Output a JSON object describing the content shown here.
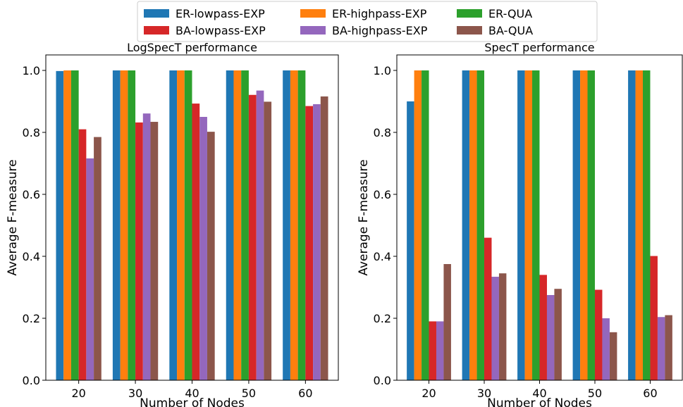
{
  "legend": {
    "entries": [
      {
        "label": "ER-lowpass-EXP",
        "color": "#1f77b4"
      },
      {
        "label": "ER-highpass-EXP",
        "color": "#ff7f0e"
      },
      {
        "label": "ER-QUA",
        "color": "#2ca02c"
      },
      {
        "label": "BA-lowpass-EXP",
        "color": "#d62728"
      },
      {
        "label": "BA-highpass-EXP",
        "color": "#9467bd"
      },
      {
        "label": "BA-QUA",
        "color": "#8c564b"
      }
    ],
    "placement": "top-center",
    "columns": 3
  },
  "chart_data": [
    {
      "type": "bar",
      "title": "LogSpecT performance",
      "xlabel": "Number of Nodes",
      "ylabel": "Average F-measure",
      "ylim": [
        0,
        1.05
      ],
      "yticks": [
        "0.0",
        "0.2",
        "0.4",
        "0.6",
        "0.8",
        "1.0"
      ],
      "categories": [
        "20",
        "30",
        "40",
        "50",
        "60"
      ],
      "series": [
        {
          "name": "ER-lowpass-EXP",
          "values": [
            0.998,
            1.0,
            1.0,
            1.0,
            1.0
          ]
        },
        {
          "name": "ER-highpass-EXP",
          "values": [
            1.0,
            1.0,
            1.0,
            1.0,
            1.0
          ]
        },
        {
          "name": "ER-QUA",
          "values": [
            1.0,
            1.0,
            1.0,
            1.0,
            1.0
          ]
        },
        {
          "name": "BA-lowpass-EXP",
          "values": [
            0.81,
            0.832,
            0.893,
            0.921,
            0.885
          ]
        },
        {
          "name": "BA-highpass-EXP",
          "values": [
            0.716,
            0.861,
            0.85,
            0.935,
            0.891
          ]
        },
        {
          "name": "BA-QUA",
          "values": [
            0.785,
            0.834,
            0.802,
            0.899,
            0.916
          ]
        }
      ]
    },
    {
      "type": "bar",
      "title": "SpecT performance",
      "xlabel": "Number of Nodes",
      "ylabel": "Average F-measure",
      "ylim": [
        0,
        1.05
      ],
      "yticks": [
        "0.0",
        "0.2",
        "0.4",
        "0.6",
        "0.8",
        "1.0"
      ],
      "categories": [
        "20",
        "30",
        "40",
        "50",
        "60"
      ],
      "series": [
        {
          "name": "ER-lowpass-EXP",
          "values": [
            0.9,
            1.0,
            1.0,
            1.0,
            1.0
          ]
        },
        {
          "name": "ER-highpass-EXP",
          "values": [
            1.0,
            1.0,
            1.0,
            1.0,
            1.0
          ]
        },
        {
          "name": "ER-QUA",
          "values": [
            1.0,
            1.0,
            1.0,
            1.0,
            1.0
          ]
        },
        {
          "name": "BA-lowpass-EXP",
          "values": [
            0.19,
            0.46,
            0.34,
            0.292,
            0.401
          ]
        },
        {
          "name": "BA-highpass-EXP",
          "values": [
            0.19,
            0.334,
            0.275,
            0.2,
            0.204
          ]
        },
        {
          "name": "BA-QUA",
          "values": [
            0.375,
            0.345,
            0.295,
            0.155,
            0.21
          ]
        }
      ]
    }
  ]
}
